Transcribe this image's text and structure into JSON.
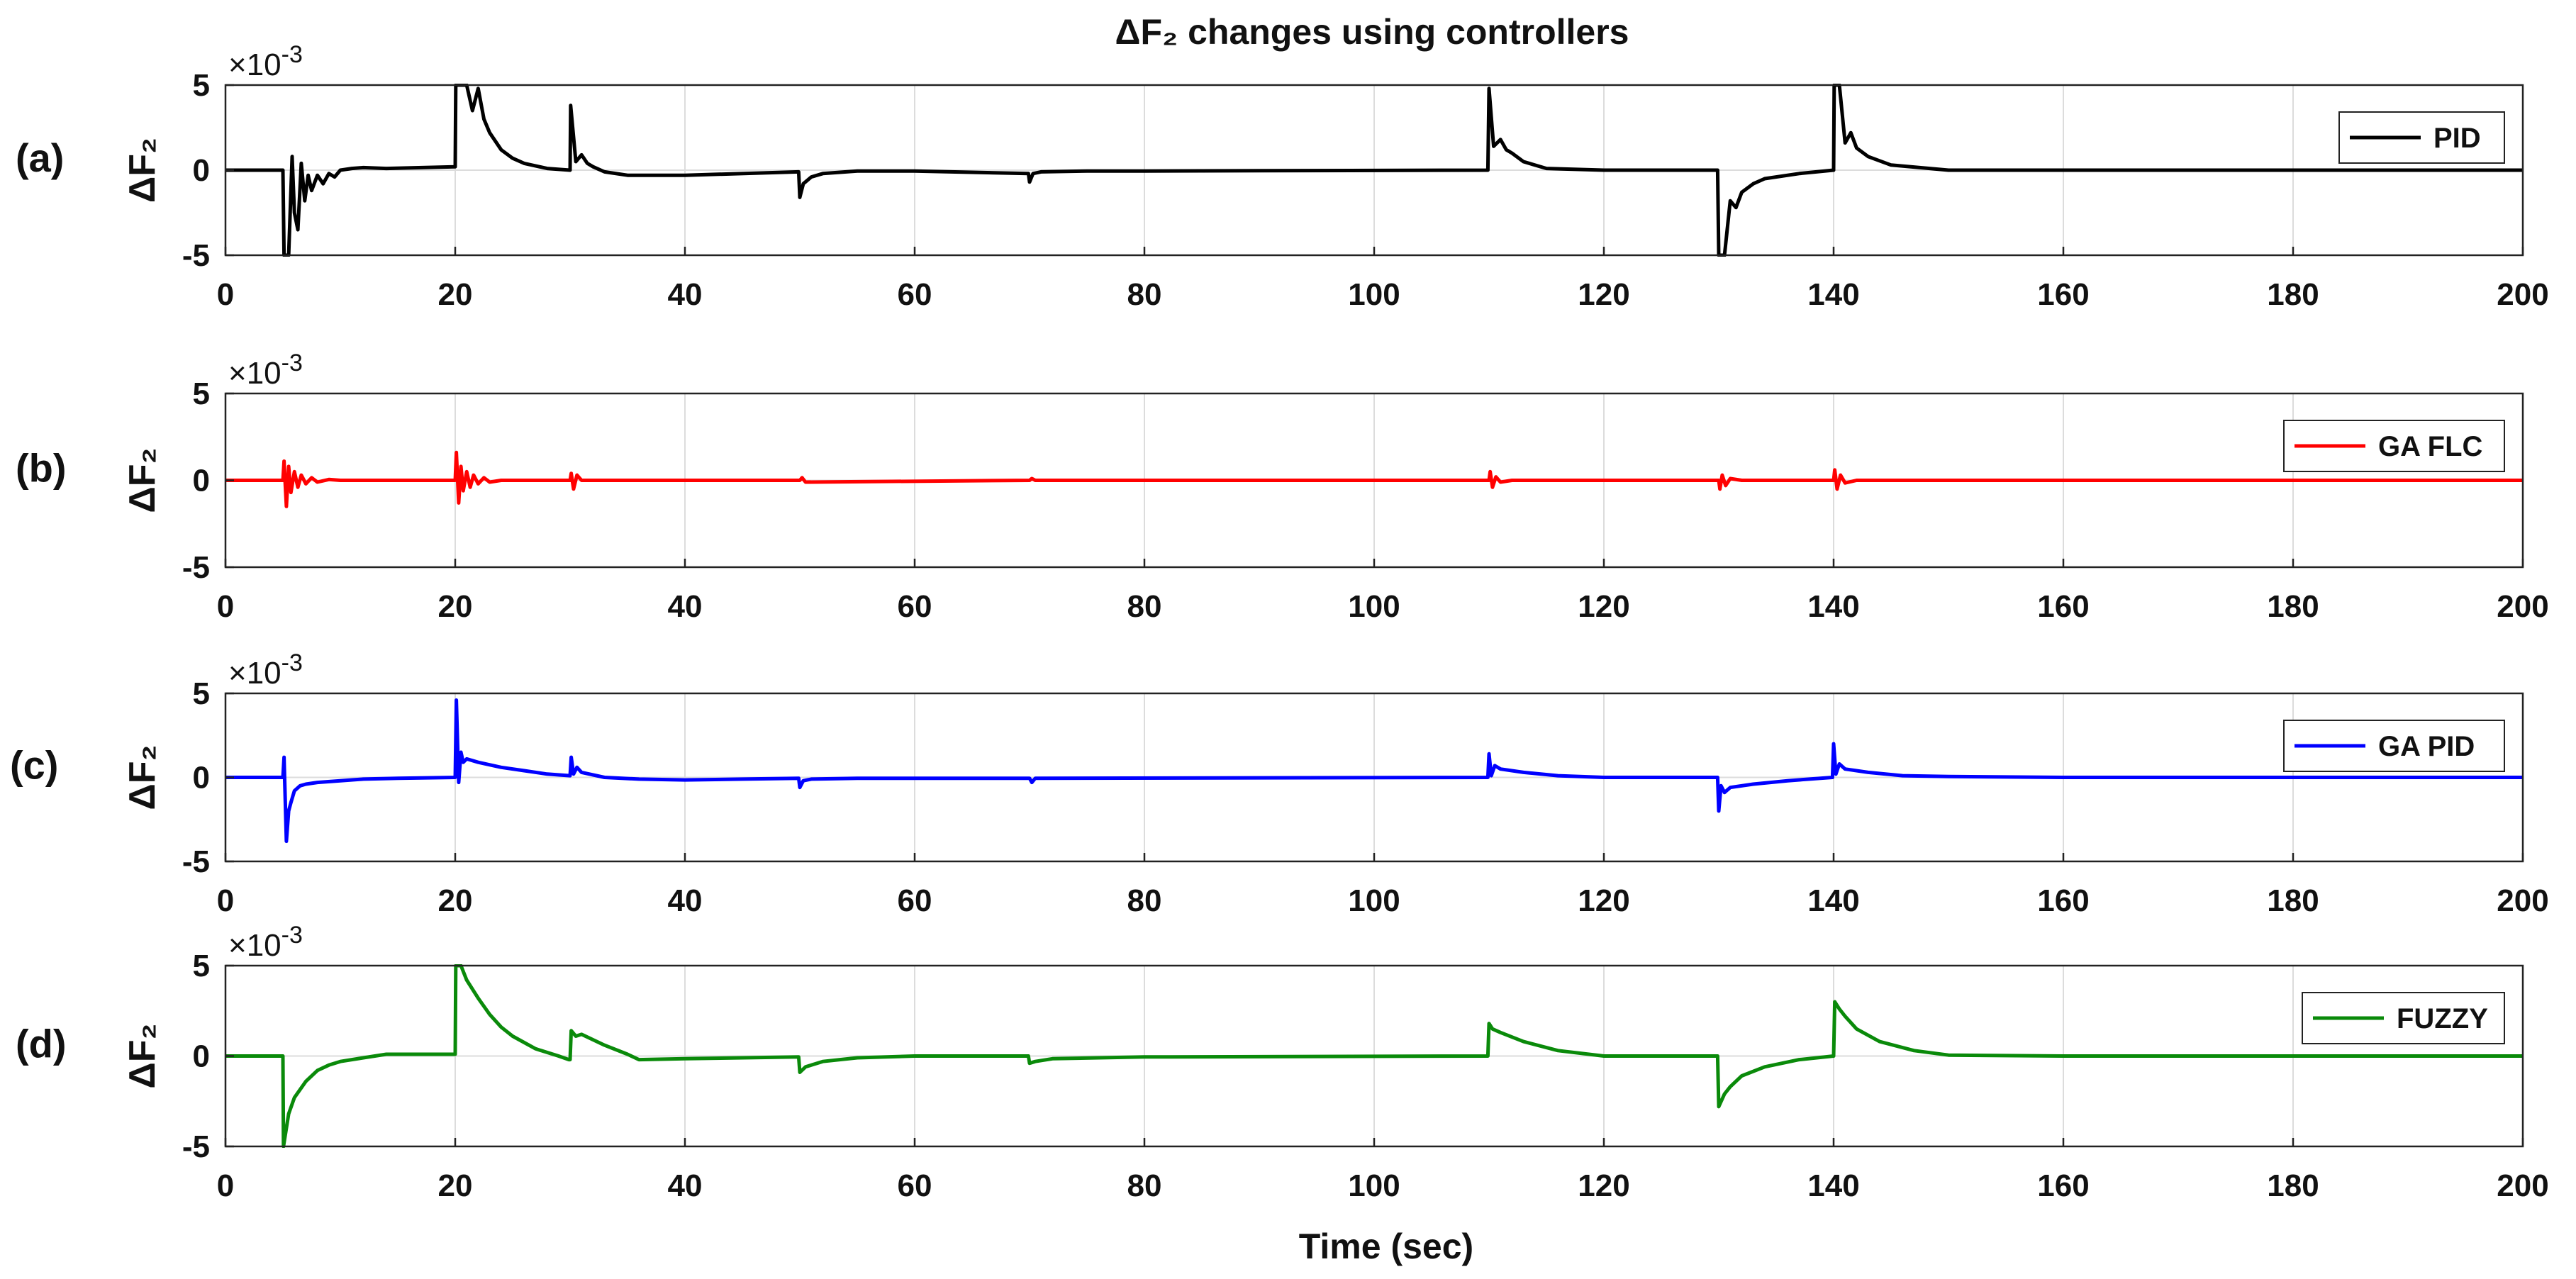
{
  "chart_data": {
    "type": "line",
    "title": "ΔF₂ changes using controllers",
    "xlabel": "Time (sec)",
    "xlim": [
      0,
      200
    ],
    "x_ticks": [
      "0",
      "20",
      "40",
      "60",
      "80",
      "100",
      "120",
      "140",
      "160",
      "180",
      "200"
    ],
    "grid": true,
    "subplots": [
      {
        "panel_label": "(a)",
        "ylabel": "ΔF₂",
        "ylim": [
          -5,
          5
        ],
        "y_ticks": [
          "5",
          "0",
          "-5"
        ],
        "scale": "×10^-3",
        "legend": "PID",
        "legend_position": "top-right",
        "color": "#000000",
        "x": [
          0,
          5,
          5.1,
          5.5,
          5.8,
          6,
          6.3,
          6.6,
          6.9,
          7.2,
          7.5,
          8,
          8.5,
          9,
          9.5,
          10,
          11,
          12,
          14,
          20,
          20.05,
          21,
          21.5,
          22,
          22.5,
          23,
          24,
          25,
          26,
          28,
          30,
          30.05,
          30.5,
          31,
          31.5,
          32,
          33,
          35,
          40,
          49.9,
          50,
          50.3,
          51,
          52,
          55,
          60,
          69.9,
          70,
          70.3,
          71,
          75,
          80,
          109.9,
          110,
          110.4,
          111,
          111.5,
          112,
          113,
          115,
          120,
          129.9,
          130,
          130.5,
          131,
          131.5,
          132,
          133,
          134,
          137,
          140,
          140.05,
          140.5,
          141,
          141.5,
          142,
          143,
          145,
          150,
          160,
          180,
          200
        ],
        "y": [
          0,
          0,
          -5,
          -5,
          0.8,
          -2.5,
          -3.5,
          0.4,
          -1.8,
          -0.3,
          -1.2,
          -0.3,
          -0.8,
          -0.2,
          -0.4,
          0,
          0.1,
          0.15,
          0.1,
          0.2,
          5,
          5,
          3.5,
          4.8,
          3,
          2.2,
          1.2,
          0.7,
          0.4,
          0.1,
          0,
          3.8,
          0.5,
          0.9,
          0.4,
          0.2,
          -0.1,
          -0.3,
          -0.3,
          -0.1,
          -1.6,
          -0.8,
          -0.4,
          -0.2,
          -0.05,
          -0.05,
          -0.2,
          -0.7,
          -0.2,
          -0.1,
          -0.05,
          -0.05,
          0,
          4.8,
          1.4,
          1.8,
          1.2,
          1,
          0.5,
          0.1,
          0,
          0,
          -5,
          -5,
          -1.8,
          -2.2,
          -1.3,
          -0.8,
          -0.5,
          -0.2,
          0,
          5,
          5,
          1.6,
          2.2,
          1.3,
          0.8,
          0.3,
          0,
          0,
          0,
          0
        ]
      },
      {
        "panel_label": "(b)",
        "ylabel": "ΔF₂",
        "ylim": [
          -5,
          5
        ],
        "y_ticks": [
          "5",
          "0",
          "-5"
        ],
        "scale": "×10^-3",
        "legend": "GA FLC",
        "legend_position": "top-right",
        "color": "#ff0000",
        "x": [
          0,
          5,
          5.1,
          5.3,
          5.5,
          5.7,
          6,
          6.3,
          6.6,
          7,
          7.5,
          8,
          9,
          10,
          20,
          20.1,
          20.3,
          20.5,
          20.7,
          21,
          21.3,
          21.6,
          22,
          22.5,
          23,
          24,
          30,
          30.1,
          30.3,
          30.6,
          31,
          50,
          50.2,
          50.5,
          70,
          70.2,
          70.5,
          110,
          110.1,
          110.3,
          110.6,
          111,
          112,
          130,
          130.1,
          130.3,
          130.6,
          131,
          132,
          140,
          140.1,
          140.3,
          140.6,
          141,
          142,
          200
        ],
        "y": [
          0,
          0,
          1.1,
          -1.5,
          0.8,
          -0.7,
          0.5,
          -0.4,
          0.3,
          -0.2,
          0.15,
          -0.1,
          0.05,
          0,
          0,
          1.6,
          -1.3,
          0.8,
          -0.6,
          0.5,
          -0.4,
          0.3,
          -0.2,
          0.15,
          -0.1,
          0,
          0,
          0.4,
          -0.5,
          0.3,
          0,
          0,
          0.15,
          -0.1,
          0,
          0.1,
          0,
          0,
          0.5,
          -0.4,
          0.2,
          -0.1,
          0,
          0,
          -0.5,
          0.3,
          -0.3,
          0.1,
          0,
          0,
          0.6,
          -0.5,
          0.3,
          -0.15,
          0,
          0
        ]
      },
      {
        "panel_label": "(c)",
        "ylabel": "ΔF₂",
        "ylim": [
          -5,
          5
        ],
        "y_ticks": [
          "5",
          "0",
          "-5"
        ],
        "scale": "×10^-3",
        "legend": "GA PID",
        "legend_position": "top-right",
        "color": "#0000ff",
        "x": [
          0,
          5,
          5.1,
          5.3,
          5.5,
          5.7,
          6,
          6.5,
          7,
          8,
          10,
          12,
          15,
          20,
          20.1,
          20.3,
          20.5,
          20.7,
          21,
          22,
          24,
          26,
          28,
          30,
          30.1,
          30.3,
          30.6,
          31,
          33,
          36,
          40,
          45,
          49.9,
          50,
          50.3,
          51,
          55,
          70,
          70.2,
          70.5,
          109.9,
          110,
          110.2,
          110.5,
          111,
          113,
          116,
          120,
          129.9,
          130,
          130.2,
          130.5,
          131,
          133,
          136,
          139.9,
          140,
          140.2,
          140.5,
          141,
          143,
          146,
          150,
          160,
          200
        ],
        "y": [
          0,
          0,
          1.2,
          -3.8,
          -2,
          -1.5,
          -0.8,
          -0.5,
          -0.4,
          -0.3,
          -0.2,
          -0.1,
          -0.05,
          0,
          4.6,
          -0.3,
          1.5,
          0.9,
          1.1,
          0.9,
          0.6,
          0.4,
          0.2,
          0.1,
          1.2,
          0.2,
          0.6,
          0.3,
          0,
          -0.1,
          -0.15,
          -0.1,
          -0.05,
          -0.6,
          -0.2,
          -0.1,
          -0.05,
          -0.05,
          -0.3,
          -0.05,
          0,
          1.4,
          0.1,
          0.7,
          0.5,
          0.3,
          0.1,
          0,
          0,
          -2,
          -0.5,
          -0.9,
          -0.6,
          -0.4,
          -0.2,
          0,
          2,
          0.2,
          0.8,
          0.5,
          0.3,
          0.1,
          0.05,
          0,
          0
        ]
      },
      {
        "panel_label": "(d)",
        "ylabel": "ΔF₂",
        "ylim": [
          -5,
          5
        ],
        "y_ticks": [
          "5",
          "0",
          "-5"
        ],
        "scale": "×10^-3",
        "legend": "FUZZY",
        "legend_position": "top-right",
        "color": "#0a8a0a",
        "x": [
          0,
          5,
          5.05,
          5.5,
          6,
          7,
          8,
          9,
          10,
          12,
          14,
          20,
          20.05,
          20.5,
          21,
          22,
          23,
          24,
          25,
          27,
          29,
          29.9,
          30,
          30.1,
          30.5,
          31,
          33,
          35,
          36,
          40,
          49.9,
          50,
          50.5,
          52,
          55,
          60,
          69.9,
          70,
          70.5,
          72,
          80,
          109.9,
          110,
          110.3,
          111,
          113,
          116,
          120,
          129.9,
          130,
          130.5,
          131,
          132,
          134,
          137,
          140,
          140.1,
          140.5,
          141,
          142,
          144,
          147,
          150,
          160,
          200
        ],
        "y": [
          0,
          0,
          -5,
          -3.2,
          -2.3,
          -1.4,
          -0.8,
          -0.5,
          -0.3,
          -0.1,
          0.1,
          0.1,
          5,
          5,
          4.2,
          3.2,
          2.3,
          1.6,
          1.1,
          0.4,
          0,
          -0.2,
          -0.2,
          1.4,
          1.1,
          1.2,
          0.6,
          0.1,
          -0.2,
          -0.15,
          -0.05,
          -0.9,
          -0.6,
          -0.3,
          -0.1,
          0,
          0,
          -0.4,
          -0.3,
          -0.15,
          -0.05,
          0,
          1.8,
          1.5,
          1.3,
          0.8,
          0.3,
          0,
          0,
          -2.8,
          -2.1,
          -1.7,
          -1.1,
          -0.6,
          -0.2,
          0,
          3,
          2.6,
          2.2,
          1.5,
          0.8,
          0.3,
          0.05,
          0,
          0
        ]
      }
    ]
  }
}
